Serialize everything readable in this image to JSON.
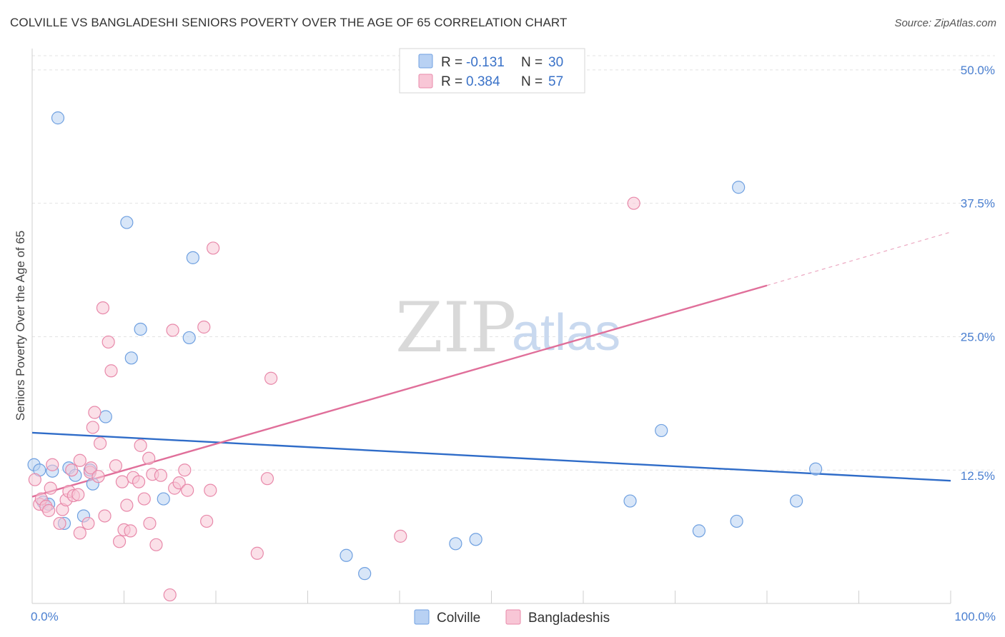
{
  "header": {
    "title": "COLVILLE VS BANGLADESHI SENIORS POVERTY OVER THE AGE OF 65 CORRELATION CHART",
    "source": "Source: ZipAtlas.com"
  },
  "chart_data": {
    "type": "scatter",
    "title": "COLVILLE VS BANGLADESHI SENIORS POVERTY OVER THE AGE OF 65 CORRELATION CHART",
    "xlabel": "",
    "ylabel": "Seniors Poverty Over the Age of 65",
    "xlim": [
      0,
      100
    ],
    "ylim": [
      0,
      52
    ],
    "x_tick_labels": [
      "0.0%",
      "100.0%"
    ],
    "y_ticks": [
      12.5,
      25.0,
      37.5,
      50.0
    ],
    "y_tick_labels": [
      "12.5%",
      "25.0%",
      "37.5%",
      "50.0%"
    ],
    "grid": true,
    "legend_placement": "top-center",
    "watermark": {
      "zip": "ZIP",
      "atlas": "atlas"
    },
    "series": [
      {
        "name": "Colville",
        "color": "#6fa0e0",
        "fill": "#b8d1f3",
        "r_label": "R =",
        "r_value": "-0.131",
        "n_label": "N =",
        "n_value": "30",
        "trend": {
          "x0": 0,
          "y0": 16.0,
          "x1": 100,
          "y1": 11.5,
          "color": "#2f6cc8"
        },
        "points": [
          [
            2.8,
            45.5
          ],
          [
            10.3,
            35.7
          ],
          [
            17.5,
            32.4
          ],
          [
            10.8,
            23.0
          ],
          [
            11.8,
            25.7
          ],
          [
            17.1,
            24.9
          ],
          [
            8.0,
            17.5
          ],
          [
            0.2,
            13.0
          ],
          [
            0.8,
            12.5
          ],
          [
            2.2,
            12.4
          ],
          [
            4.0,
            12.7
          ],
          [
            4.7,
            12.0
          ],
          [
            6.3,
            12.5
          ],
          [
            6.6,
            11.2
          ],
          [
            1.2,
            9.5
          ],
          [
            1.8,
            9.3
          ],
          [
            3.5,
            7.5
          ],
          [
            5.6,
            8.2
          ],
          [
            14.3,
            9.8
          ],
          [
            34.2,
            4.5
          ],
          [
            36.2,
            2.8
          ],
          [
            46.1,
            5.6
          ],
          [
            48.3,
            6.0
          ],
          [
            65.1,
            9.6
          ],
          [
            72.6,
            6.8
          ],
          [
            76.7,
            7.7
          ],
          [
            83.2,
            9.6
          ],
          [
            68.5,
            16.2
          ],
          [
            76.9,
            39.0
          ],
          [
            85.3,
            12.6
          ]
        ]
      },
      {
        "name": "Bangladeshis",
        "color": "#e889aa",
        "fill": "#f8c6d6",
        "r_label": "R =",
        "r_value": "0.384",
        "n_label": "N =",
        "n_value": "57",
        "trend": {
          "x0": 0,
          "y0": 10.0,
          "x1": 80,
          "y1": 29.8,
          "color": "#e06f9a"
        },
        "trend_ext": {
          "x0": 80,
          "y0": 29.8,
          "x1": 100,
          "y1": 34.8
        },
        "points": [
          [
            0.3,
            11.6
          ],
          [
            0.8,
            9.3
          ],
          [
            1.0,
            9.8
          ],
          [
            1.5,
            9.1
          ],
          [
            1.8,
            8.7
          ],
          [
            2.0,
            10.8
          ],
          [
            2.2,
            13.0
          ],
          [
            3.0,
            7.5
          ],
          [
            3.3,
            8.8
          ],
          [
            3.7,
            9.7
          ],
          [
            4.0,
            10.5
          ],
          [
            4.3,
            12.5
          ],
          [
            4.5,
            10.1
          ],
          [
            5.0,
            10.2
          ],
          [
            5.2,
            6.6
          ],
          [
            5.2,
            13.4
          ],
          [
            6.1,
            7.5
          ],
          [
            6.3,
            12.3
          ],
          [
            6.4,
            12.7
          ],
          [
            6.6,
            16.5
          ],
          [
            6.8,
            17.9
          ],
          [
            7.2,
            11.9
          ],
          [
            7.4,
            15.0
          ],
          [
            7.7,
            27.7
          ],
          [
            7.9,
            8.2
          ],
          [
            8.3,
            24.5
          ],
          [
            8.6,
            21.8
          ],
          [
            9.1,
            12.9
          ],
          [
            9.5,
            5.8
          ],
          [
            9.8,
            11.4
          ],
          [
            10.0,
            6.9
          ],
          [
            10.3,
            9.2
          ],
          [
            10.7,
            6.8
          ],
          [
            11.0,
            11.8
          ],
          [
            11.6,
            11.4
          ],
          [
            11.8,
            14.8
          ],
          [
            12.2,
            9.8
          ],
          [
            12.7,
            13.6
          ],
          [
            12.8,
            7.5
          ],
          [
            13.1,
            12.1
          ],
          [
            13.5,
            5.5
          ],
          [
            14.0,
            12.0
          ],
          [
            15.0,
            0.8
          ],
          [
            15.3,
            25.6
          ],
          [
            15.5,
            10.8
          ],
          [
            16.0,
            11.3
          ],
          [
            16.6,
            12.5
          ],
          [
            16.9,
            10.6
          ],
          [
            18.7,
            25.9
          ],
          [
            19.0,
            7.7
          ],
          [
            19.4,
            10.6
          ],
          [
            19.7,
            33.3
          ],
          [
            24.5,
            4.7
          ],
          [
            25.6,
            11.7
          ],
          [
            26.0,
            21.1
          ],
          [
            40.1,
            6.3
          ],
          [
            65.5,
            37.5
          ]
        ]
      }
    ]
  }
}
